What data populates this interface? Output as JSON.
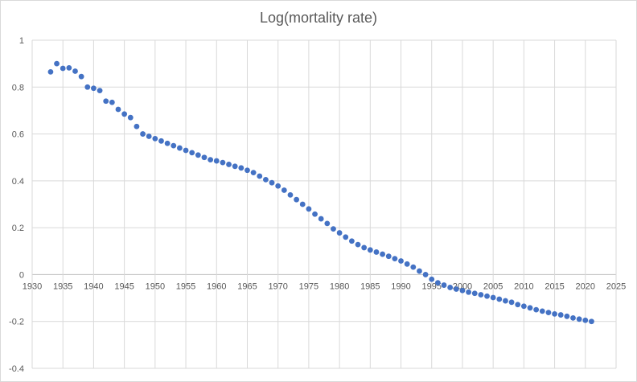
{
  "chart_data": {
    "type": "scatter",
    "title": "Log(mortality rate)",
    "xlabel": "",
    "ylabel": "",
    "xlim": [
      1930,
      2025
    ],
    "ylim": [
      -0.4,
      1
    ],
    "xticks": [
      1930,
      1935,
      1940,
      1945,
      1950,
      1955,
      1960,
      1965,
      1970,
      1975,
      1980,
      1985,
      1990,
      1995,
      2000,
      2005,
      2010,
      2015,
      2020,
      2025
    ],
    "yticks": [
      -0.4,
      -0.2,
      0,
      0.2,
      0.4,
      0.6,
      0.8,
      1
    ],
    "grid": true,
    "legend": "none",
    "marker_color": "#4472C4",
    "x": [
      1933,
      1934,
      1935,
      1936,
      1937,
      1938,
      1939,
      1940,
      1941,
      1942,
      1943,
      1944,
      1945,
      1946,
      1947,
      1948,
      1949,
      1950,
      1951,
      1952,
      1953,
      1954,
      1955,
      1956,
      1957,
      1958,
      1959,
      1960,
      1961,
      1962,
      1963,
      1964,
      1965,
      1966,
      1967,
      1968,
      1969,
      1970,
      1971,
      1972,
      1973,
      1974,
      1975,
      1976,
      1977,
      1978,
      1979,
      1980,
      1981,
      1982,
      1983,
      1984,
      1985,
      1986,
      1987,
      1988,
      1989,
      1990,
      1991,
      1992,
      1993,
      1994,
      1995,
      1996,
      1997,
      1998,
      1999,
      2000,
      2001,
      2002,
      2003,
      2004,
      2005,
      2006,
      2007,
      2008,
      2009,
      2010,
      2011,
      2012,
      2013,
      2014,
      2015,
      2016,
      2017,
      2018,
      2019,
      2020,
      2021
    ],
    "y": [
      0.865,
      0.9,
      0.88,
      0.882,
      0.868,
      0.845,
      0.8,
      0.795,
      0.785,
      0.74,
      0.735,
      0.705,
      0.685,
      0.67,
      0.632,
      0.6,
      0.59,
      0.58,
      0.57,
      0.56,
      0.55,
      0.54,
      0.53,
      0.52,
      0.51,
      0.5,
      0.49,
      0.485,
      0.478,
      0.47,
      0.462,
      0.455,
      0.445,
      0.435,
      0.42,
      0.405,
      0.392,
      0.378,
      0.36,
      0.34,
      0.32,
      0.3,
      0.28,
      0.258,
      0.238,
      0.218,
      0.195,
      0.178,
      0.16,
      0.143,
      0.128,
      0.115,
      0.105,
      0.096,
      0.087,
      0.078,
      0.068,
      0.058,
      0.045,
      0.032,
      0.015,
      0.0,
      -0.02,
      -0.035,
      -0.045,
      -0.055,
      -0.062,
      -0.068,
      -0.075,
      -0.08,
      -0.086,
      -0.092,
      -0.098,
      -0.105,
      -0.112,
      -0.118,
      -0.128,
      -0.135,
      -0.142,
      -0.15,
      -0.156,
      -0.162,
      -0.168,
      -0.172,
      -0.178,
      -0.185,
      -0.19,
      -0.195,
      -0.2
    ]
  }
}
